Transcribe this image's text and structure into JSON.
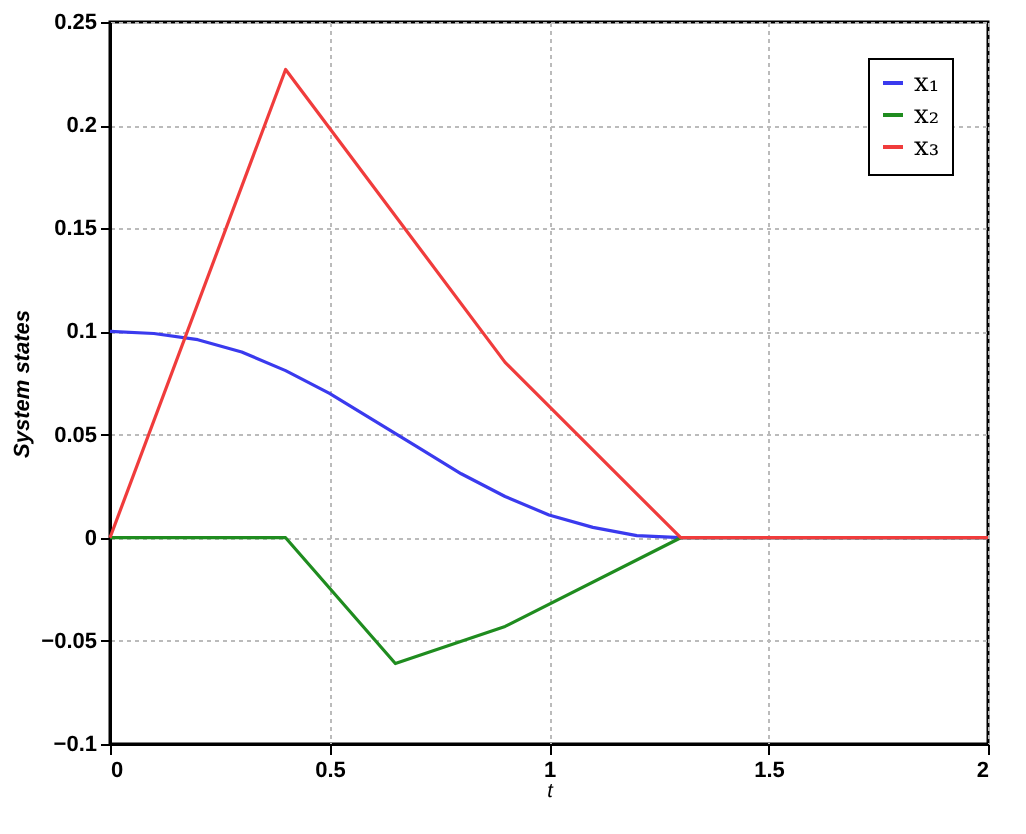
{
  "chart_data": {
    "type": "line",
    "xlabel": "t",
    "ylabel": "System states",
    "xlim": [
      0,
      2
    ],
    "xticks": [
      0,
      0.5,
      1,
      1.5,
      2
    ],
    "ylim": [
      -0.1,
      0.25
    ],
    "yticks": [
      -0.1,
      -0.05,
      0,
      0.05,
      0.1,
      0.15,
      0.2,
      0.25
    ],
    "grid": true,
    "legend": "top right",
    "marker": "none",
    "line_style": "solid",
    "series": [
      {
        "name": "x₁",
        "color": "#3a3aee",
        "x": [
          0,
          0.1,
          0.2,
          0.3,
          0.4,
          0.5,
          0.6,
          0.7,
          0.8,
          0.9,
          1.0,
          1.1,
          1.2,
          1.3,
          2
        ],
        "values": [
          0.1,
          0.099,
          0.096,
          0.09,
          0.081,
          0.07,
          0.057,
          0.044,
          0.031,
          0.02,
          0.011,
          0.005,
          0.001,
          0,
          0
        ]
      },
      {
        "name": "x₂",
        "color": "#1f8c1f",
        "x": [
          0,
          0.4,
          0.65,
          0.9,
          1.3,
          2
        ],
        "values": [
          0,
          0,
          -0.061,
          -0.043,
          0,
          0
        ]
      },
      {
        "name": "x₃",
        "color": "#f03c3c",
        "x": [
          0,
          0.4,
          0.9,
          1.3,
          2
        ],
        "values": [
          0,
          0.227,
          0.085,
          0,
          0
        ]
      }
    ]
  }
}
